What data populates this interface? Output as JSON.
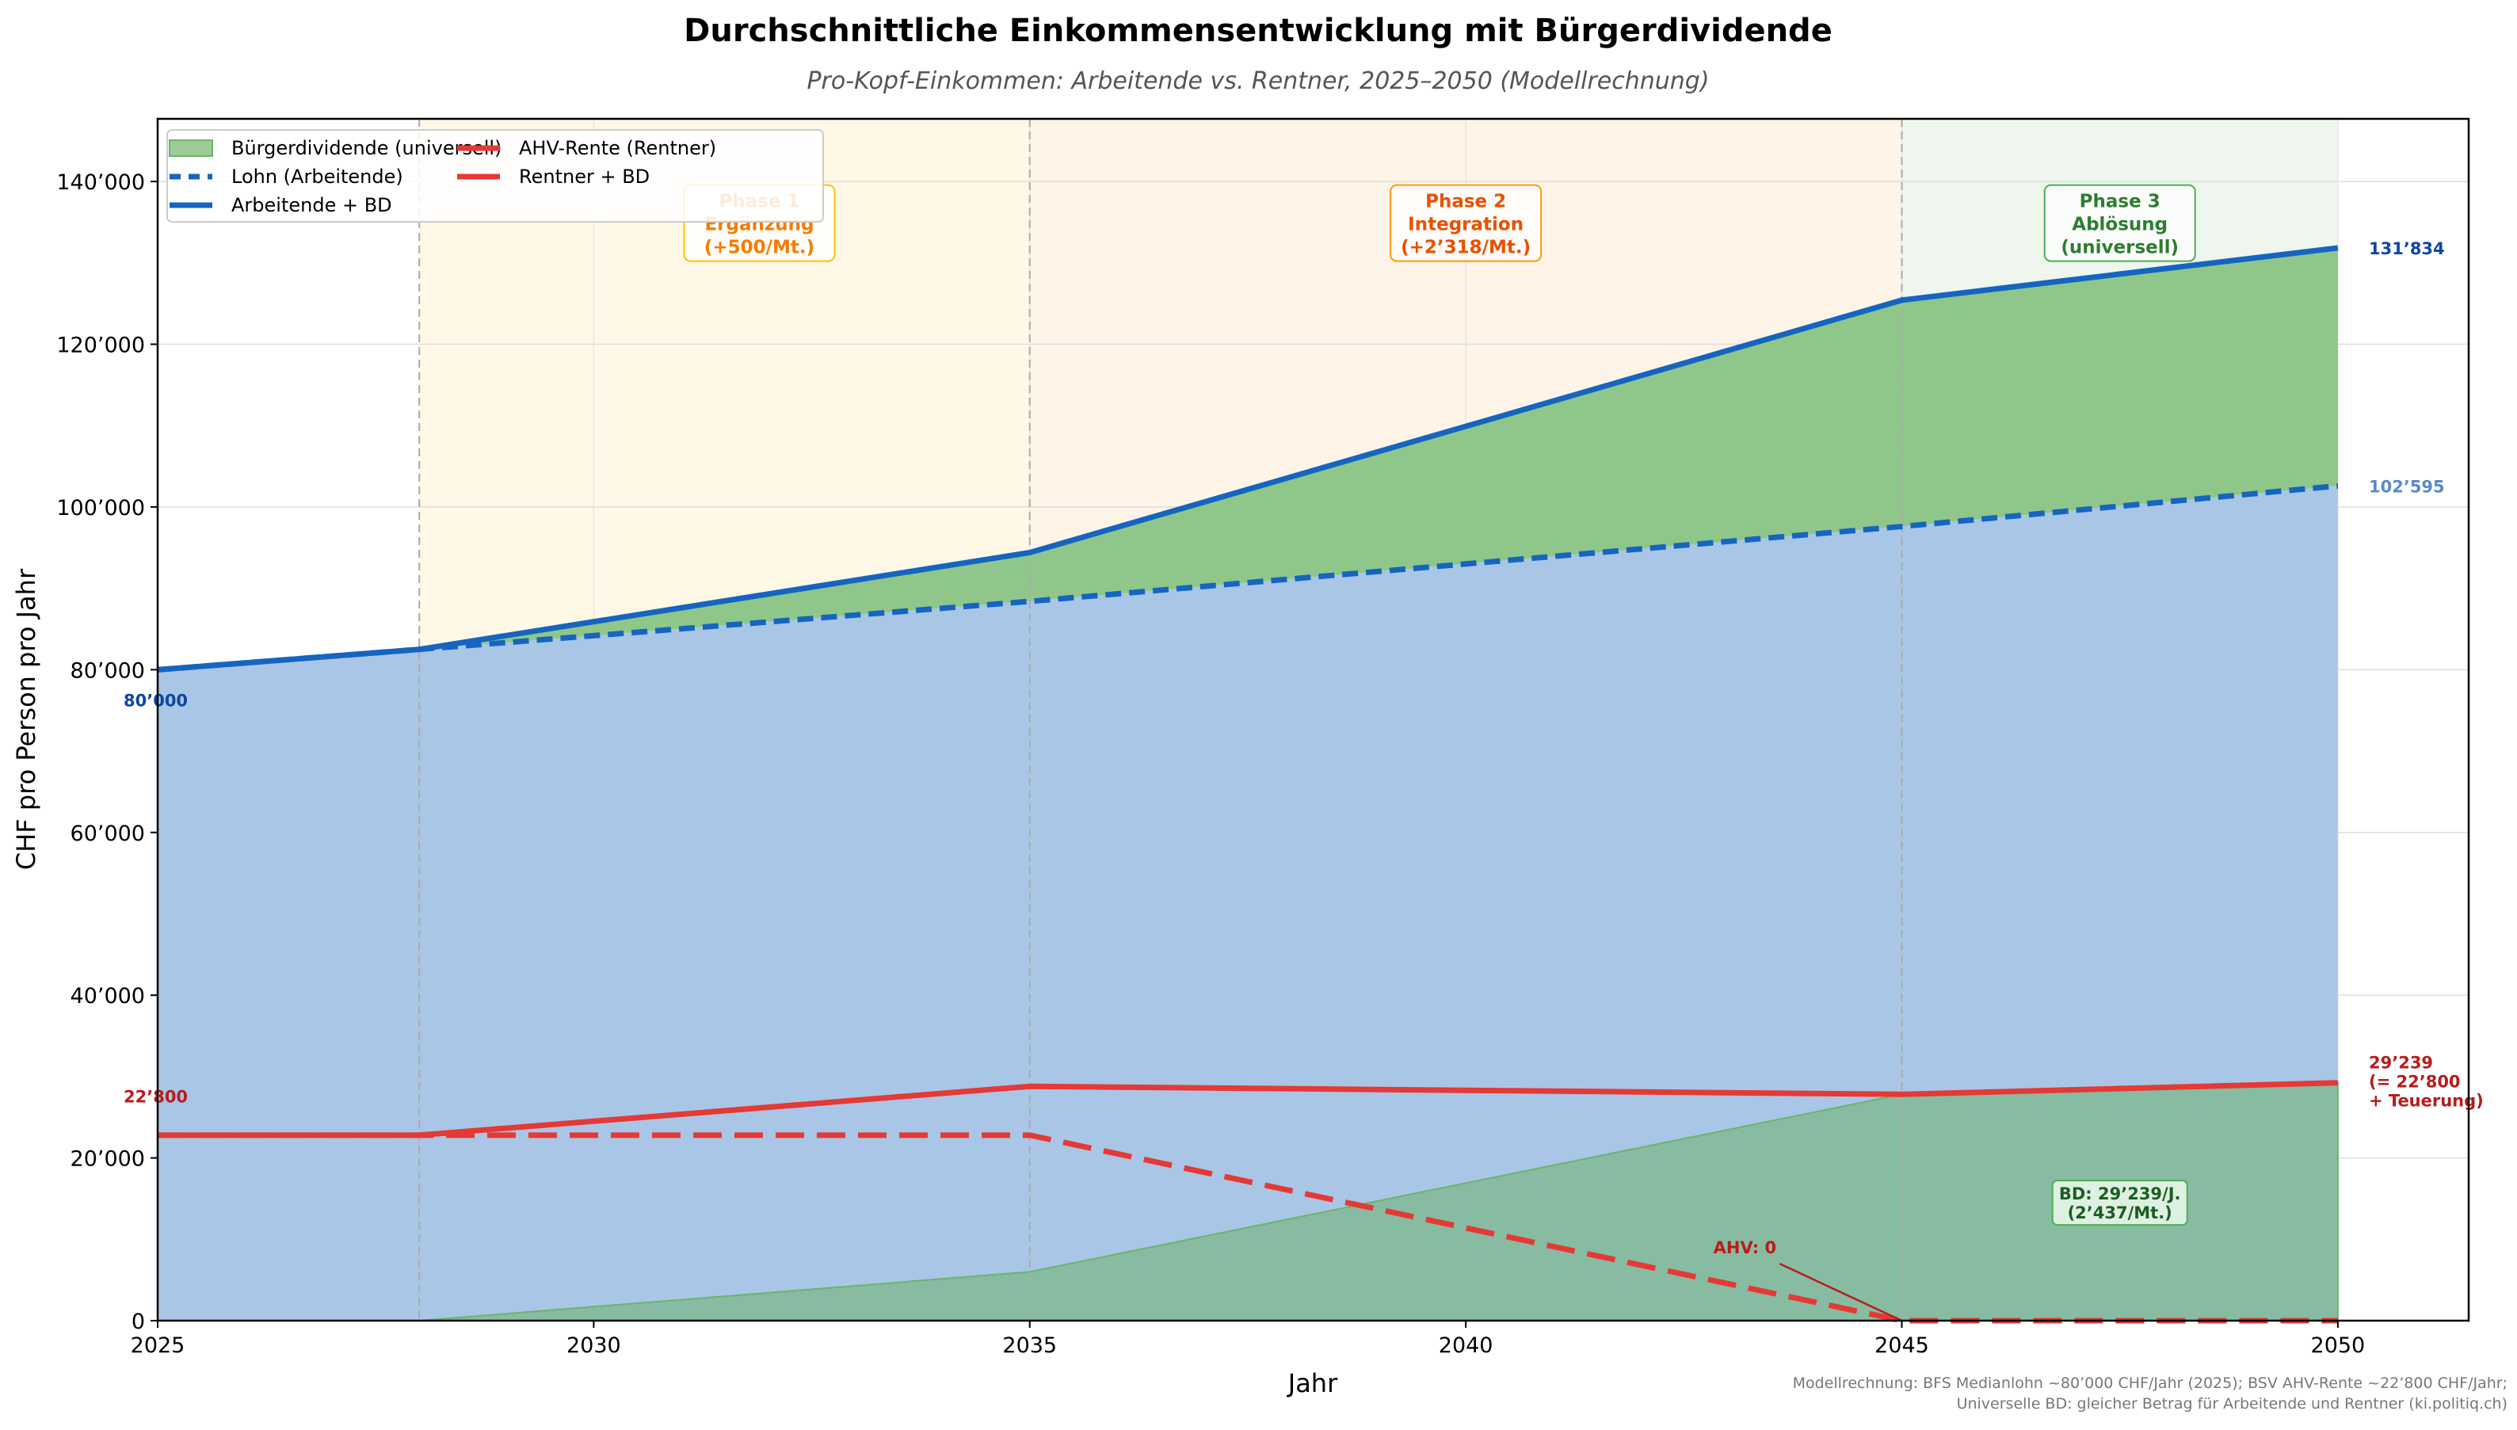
{
  "chart_data": {
    "type": "area",
    "title": "Durchschnittliche Einkommensentwicklung mit Bürgerdividende",
    "subtitle": "Pro-Kopf-Einkommen: Arbeitende vs. Rentner, 2025–2050 (Modellrechnung)",
    "xlabel": "Jahr",
    "ylabel": "CHF pro Person pro Jahr",
    "xlim": [
      2025,
      2051.5
    ],
    "ylim": [
      0,
      147700
    ],
    "xticks": [
      2025,
      2030,
      2035,
      2040,
      2045,
      2050
    ],
    "yticks": [
      0,
      20000,
      40000,
      60000,
      80000,
      100000,
      120000,
      140000
    ],
    "ytick_labels": [
      "0",
      "20’000",
      "40’000",
      "60’000",
      "80’000",
      "100’000",
      "120’000",
      "140’000"
    ],
    "grid": true,
    "legend_position": "top-left",
    "x": [
      2025,
      2028,
      2035,
      2045,
      2050
    ],
    "series": [
      {
        "name": "Bürgerdividende (universell)",
        "kind": "area",
        "color": "#7cbf72",
        "values": [
          0,
          0,
          6000,
          27816,
          29239
        ]
      },
      {
        "name": "Lohn (Arbeitende)",
        "kind": "dashed-line",
        "color": "#1565c0",
        "values": [
          80000,
          82500,
          88400,
          97600,
          102595
        ]
      },
      {
        "name": "Arbeitende + BD",
        "kind": "line",
        "color": "#1565c0",
        "values": [
          80000,
          82500,
          94400,
          125416,
          131834
        ]
      },
      {
        "name": "AHV-Rente (Rentner)",
        "kind": "dashed-line",
        "color": "#e53935",
        "values": [
          22800,
          22800,
          22800,
          0,
          0
        ]
      },
      {
        "name": "Rentner + BD",
        "kind": "line",
        "color": "#e53935",
        "values": [
          22800,
          22800,
          28800,
          27816,
          29239
        ]
      }
    ],
    "phases": [
      {
        "start": 2028,
        "end": 2035,
        "color": "#fff8e6",
        "label": [
          "Phase 1",
          "Ergänzung",
          "(+500/Mt.)"
        ],
        "text_color": "#f57c00",
        "border": "#ffc107"
      },
      {
        "start": 2035,
        "end": 2045,
        "color": "#fff4e8",
        "label": [
          "Phase 2",
          "Integration",
          "(+2’318/Mt.)"
        ],
        "text_color": "#e65100",
        "border": "#ff9800"
      },
      {
        "start": 2045,
        "end": 2050,
        "color": "#eef6ee",
        "label": [
          "Phase 3",
          "Ablösung",
          "(universell)"
        ],
        "text_color": "#2e7d32",
        "border": "#4caf50"
      }
    ],
    "annotations": {
      "start_wage": "80’000",
      "start_pension": "22’800",
      "end_total": "131’834",
      "end_wage": "102’595",
      "end_pension": [
        "29’239",
        "(= 22’800",
        "+ Teuerung)"
      ],
      "bd_box": [
        "BD: 29’239/J.",
        "(2’437/Mt.)"
      ],
      "ahv_zero": "AHV: 0"
    },
    "footnote": [
      "Modellrechnung: BFS Medianlohn ~80’000 CHF/Jahr (2025); BSV AHV-Rente ~22’800 CHF/Jahr;",
      "Universelle BD: gleicher Betrag für Arbeitende und Rentner (ki.politiq.ch)"
    ]
  }
}
